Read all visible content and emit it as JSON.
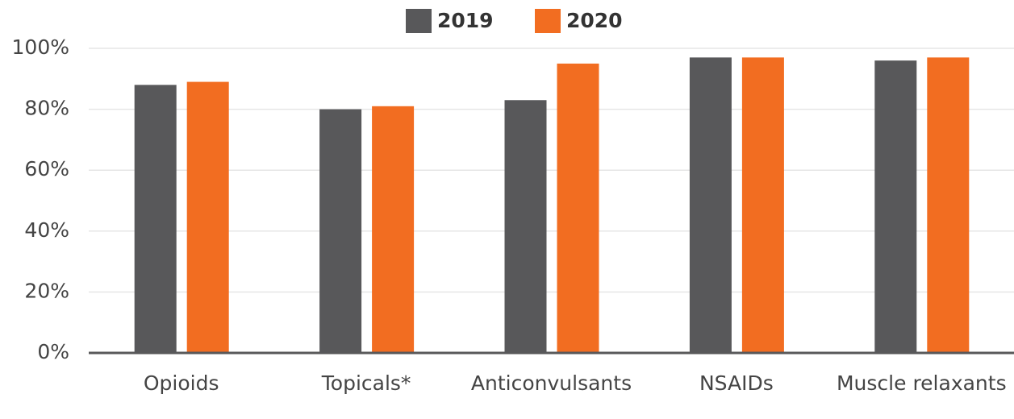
{
  "chart_data": {
    "type": "bar",
    "categories": [
      "Opioids",
      "Topicals*",
      "Anticonvulsants",
      "NSAIDs",
      "Muscle relaxants"
    ],
    "series": [
      {
        "name": "2019",
        "color": "#58585a",
        "values": [
          88,
          80,
          83,
          97,
          96
        ]
      },
      {
        "name": "2020",
        "color": "#f26d21",
        "values": [
          89,
          81,
          95,
          97,
          97
        ]
      }
    ],
    "ylim": [
      0,
      100
    ],
    "yticks": [
      {
        "value": 0,
        "label": "0%"
      },
      {
        "value": 20,
        "label": "20%"
      },
      {
        "value": 40,
        "label": "40%"
      },
      {
        "value": 60,
        "label": "60%"
      },
      {
        "value": 80,
        "label": "80%"
      },
      {
        "value": 100,
        "label": "100%"
      }
    ],
    "grid": true,
    "legend": "top"
  }
}
